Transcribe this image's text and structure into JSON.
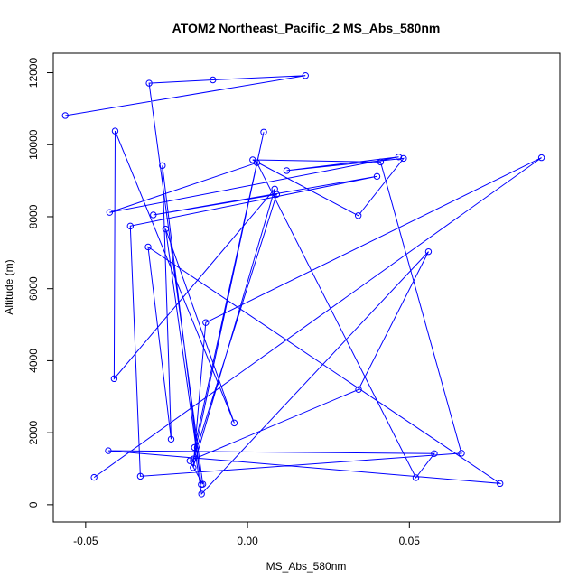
{
  "chart_data": {
    "type": "line",
    "title": "ATOM2 Northeast_Pacific_2 MS_Abs_580nm",
    "xlabel": "MS_Abs_580nm",
    "ylabel": "Altitude (m)",
    "xlim": [
      -0.06,
      0.0965
    ],
    "ylim": [
      -480,
      12540
    ],
    "x_ticks": [
      -0.05,
      0.0,
      0.05
    ],
    "x_tick_labels": [
      "-0.05",
      "0.00",
      "0.05"
    ],
    "y_ticks": [
      0,
      2000,
      4000,
      6000,
      8000,
      10000,
      12000
    ],
    "y_tick_labels": [
      "0",
      "2000",
      "4000",
      "6000",
      "8000",
      "10000",
      "12000"
    ],
    "grid": false,
    "marker": "open-circle",
    "color": "#0000ff",
    "points": [
      {
        "x": -0.0563,
        "y": 10810
      },
      {
        "x": 0.0179,
        "y": 11920
      },
      {
        "x": -0.0107,
        "y": 11800
      },
      {
        "x": -0.0304,
        "y": 11710
      },
      {
        "x": -0.0138,
        "y": 570
      },
      {
        "x": -0.0178,
        "y": 1220
      },
      {
        "x": 0.0343,
        "y": 3200
      },
      {
        "x": 0.0559,
        "y": 7030
      },
      {
        "x": -0.0142,
        "y": 300
      },
      {
        "x": -0.0164,
        "y": 1590
      },
      {
        "x": 0.005,
        "y": 10350
      },
      {
        "x": -0.0167,
        "y": 1270
      },
      {
        "x": 0.009,
        "y": 8620
      },
      {
        "x": -0.0291,
        "y": 8050
      },
      {
        "x": 0.04,
        "y": 9120
      },
      {
        "x": -0.0362,
        "y": 7740
      },
      {
        "x": -0.0331,
        "y": 790
      },
      {
        "x": 0.0661,
        "y": 1430
      },
      {
        "x": 0.0411,
        "y": 9520
      },
      {
        "x": 0.0016,
        "y": 9580
      },
      {
        "x": 0.0342,
        "y": 8030
      },
      {
        "x": 0.0482,
        "y": 9620
      },
      {
        "x": 0.0121,
        "y": 9280
      },
      {
        "x": 0.0467,
        "y": 9660
      },
      {
        "x": -0.0426,
        "y": 8120
      },
      {
        "x": 0.0029,
        "y": 9500
      },
      {
        "x": 0.052,
        "y": 750
      },
      {
        "x": 0.0577,
        "y": 1420
      },
      {
        "x": -0.043,
        "y": 1500
      },
      {
        "x": 0.078,
        "y": 590
      },
      {
        "x": -0.0307,
        "y": 7160
      },
      {
        "x": -0.0236,
        "y": 1820
      },
      {
        "x": -0.0263,
        "y": 9420
      },
      {
        "x": -0.0143,
        "y": 560
      },
      {
        "x": -0.0253,
        "y": 7660
      },
      {
        "x": -0.0041,
        "y": 2270
      },
      {
        "x": -0.0409,
        "y": 10380
      },
      {
        "x": -0.0412,
        "y": 3500
      },
      {
        "x": 0.0084,
        "y": 8770
      },
      {
        "x": -0.0168,
        "y": 1030
      },
      {
        "x": -0.0129,
        "y": 5060
      },
      {
        "x": 0.0908,
        "y": 9640
      },
      {
        "x": -0.0474,
        "y": 760
      }
    ]
  }
}
